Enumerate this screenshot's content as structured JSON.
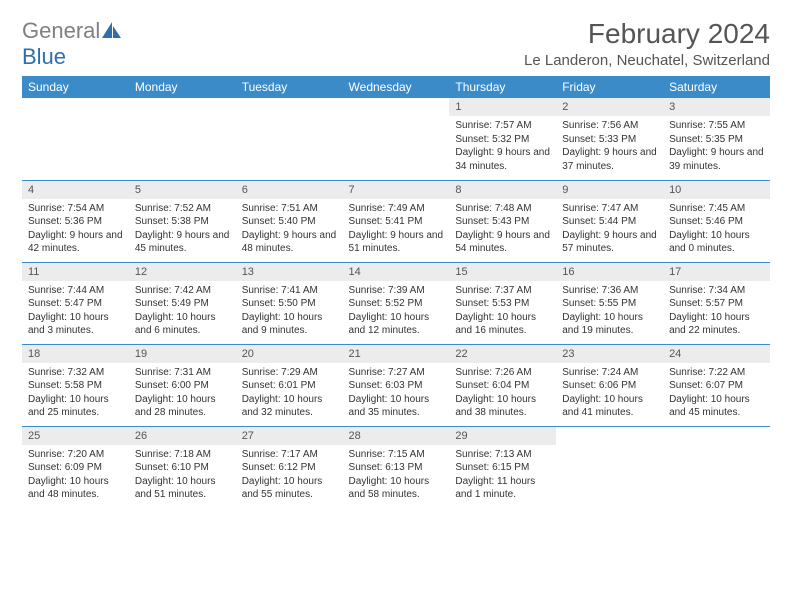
{
  "logo": {
    "gray": "General",
    "blue": "Blue"
  },
  "title": "February 2024",
  "location": "Le Landeron, Neuchatel, Switzerland",
  "colors": {
    "header_bg": "#3b8bc9",
    "header_text": "#ffffff",
    "daynum_bg": "#ececec",
    "border": "#3b8bc9",
    "logo_gray": "#808080",
    "logo_blue": "#2f6faf"
  },
  "dayNames": [
    "Sunday",
    "Monday",
    "Tuesday",
    "Wednesday",
    "Thursday",
    "Friday",
    "Saturday"
  ],
  "weeks": [
    [
      {
        "n": "",
        "sr": "",
        "ss": "",
        "dl": ""
      },
      {
        "n": "",
        "sr": "",
        "ss": "",
        "dl": ""
      },
      {
        "n": "",
        "sr": "",
        "ss": "",
        "dl": ""
      },
      {
        "n": "",
        "sr": "",
        "ss": "",
        "dl": ""
      },
      {
        "n": "1",
        "sr": "Sunrise: 7:57 AM",
        "ss": "Sunset: 5:32 PM",
        "dl": "Daylight: 9 hours and 34 minutes."
      },
      {
        "n": "2",
        "sr": "Sunrise: 7:56 AM",
        "ss": "Sunset: 5:33 PM",
        "dl": "Daylight: 9 hours and 37 minutes."
      },
      {
        "n": "3",
        "sr": "Sunrise: 7:55 AM",
        "ss": "Sunset: 5:35 PM",
        "dl": "Daylight: 9 hours and 39 minutes."
      }
    ],
    [
      {
        "n": "4",
        "sr": "Sunrise: 7:54 AM",
        "ss": "Sunset: 5:36 PM",
        "dl": "Daylight: 9 hours and 42 minutes."
      },
      {
        "n": "5",
        "sr": "Sunrise: 7:52 AM",
        "ss": "Sunset: 5:38 PM",
        "dl": "Daylight: 9 hours and 45 minutes."
      },
      {
        "n": "6",
        "sr": "Sunrise: 7:51 AM",
        "ss": "Sunset: 5:40 PM",
        "dl": "Daylight: 9 hours and 48 minutes."
      },
      {
        "n": "7",
        "sr": "Sunrise: 7:49 AM",
        "ss": "Sunset: 5:41 PM",
        "dl": "Daylight: 9 hours and 51 minutes."
      },
      {
        "n": "8",
        "sr": "Sunrise: 7:48 AM",
        "ss": "Sunset: 5:43 PM",
        "dl": "Daylight: 9 hours and 54 minutes."
      },
      {
        "n": "9",
        "sr": "Sunrise: 7:47 AM",
        "ss": "Sunset: 5:44 PM",
        "dl": "Daylight: 9 hours and 57 minutes."
      },
      {
        "n": "10",
        "sr": "Sunrise: 7:45 AM",
        "ss": "Sunset: 5:46 PM",
        "dl": "Daylight: 10 hours and 0 minutes."
      }
    ],
    [
      {
        "n": "11",
        "sr": "Sunrise: 7:44 AM",
        "ss": "Sunset: 5:47 PM",
        "dl": "Daylight: 10 hours and 3 minutes."
      },
      {
        "n": "12",
        "sr": "Sunrise: 7:42 AM",
        "ss": "Sunset: 5:49 PM",
        "dl": "Daylight: 10 hours and 6 minutes."
      },
      {
        "n": "13",
        "sr": "Sunrise: 7:41 AM",
        "ss": "Sunset: 5:50 PM",
        "dl": "Daylight: 10 hours and 9 minutes."
      },
      {
        "n": "14",
        "sr": "Sunrise: 7:39 AM",
        "ss": "Sunset: 5:52 PM",
        "dl": "Daylight: 10 hours and 12 minutes."
      },
      {
        "n": "15",
        "sr": "Sunrise: 7:37 AM",
        "ss": "Sunset: 5:53 PM",
        "dl": "Daylight: 10 hours and 16 minutes."
      },
      {
        "n": "16",
        "sr": "Sunrise: 7:36 AM",
        "ss": "Sunset: 5:55 PM",
        "dl": "Daylight: 10 hours and 19 minutes."
      },
      {
        "n": "17",
        "sr": "Sunrise: 7:34 AM",
        "ss": "Sunset: 5:57 PM",
        "dl": "Daylight: 10 hours and 22 minutes."
      }
    ],
    [
      {
        "n": "18",
        "sr": "Sunrise: 7:32 AM",
        "ss": "Sunset: 5:58 PM",
        "dl": "Daylight: 10 hours and 25 minutes."
      },
      {
        "n": "19",
        "sr": "Sunrise: 7:31 AM",
        "ss": "Sunset: 6:00 PM",
        "dl": "Daylight: 10 hours and 28 minutes."
      },
      {
        "n": "20",
        "sr": "Sunrise: 7:29 AM",
        "ss": "Sunset: 6:01 PM",
        "dl": "Daylight: 10 hours and 32 minutes."
      },
      {
        "n": "21",
        "sr": "Sunrise: 7:27 AM",
        "ss": "Sunset: 6:03 PM",
        "dl": "Daylight: 10 hours and 35 minutes."
      },
      {
        "n": "22",
        "sr": "Sunrise: 7:26 AM",
        "ss": "Sunset: 6:04 PM",
        "dl": "Daylight: 10 hours and 38 minutes."
      },
      {
        "n": "23",
        "sr": "Sunrise: 7:24 AM",
        "ss": "Sunset: 6:06 PM",
        "dl": "Daylight: 10 hours and 41 minutes."
      },
      {
        "n": "24",
        "sr": "Sunrise: 7:22 AM",
        "ss": "Sunset: 6:07 PM",
        "dl": "Daylight: 10 hours and 45 minutes."
      }
    ],
    [
      {
        "n": "25",
        "sr": "Sunrise: 7:20 AM",
        "ss": "Sunset: 6:09 PM",
        "dl": "Daylight: 10 hours and 48 minutes."
      },
      {
        "n": "26",
        "sr": "Sunrise: 7:18 AM",
        "ss": "Sunset: 6:10 PM",
        "dl": "Daylight: 10 hours and 51 minutes."
      },
      {
        "n": "27",
        "sr": "Sunrise: 7:17 AM",
        "ss": "Sunset: 6:12 PM",
        "dl": "Daylight: 10 hours and 55 minutes."
      },
      {
        "n": "28",
        "sr": "Sunrise: 7:15 AM",
        "ss": "Sunset: 6:13 PM",
        "dl": "Daylight: 10 hours and 58 minutes."
      },
      {
        "n": "29",
        "sr": "Sunrise: 7:13 AM",
        "ss": "Sunset: 6:15 PM",
        "dl": "Daylight: 11 hours and 1 minute."
      },
      {
        "n": "",
        "sr": "",
        "ss": "",
        "dl": ""
      },
      {
        "n": "",
        "sr": "",
        "ss": "",
        "dl": ""
      }
    ]
  ]
}
